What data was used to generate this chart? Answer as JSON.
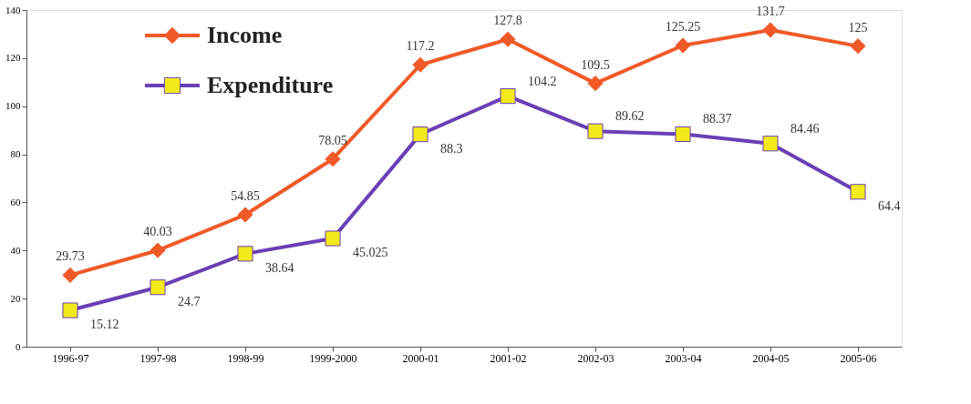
{
  "chart_data": {
    "type": "line",
    "categories": [
      "1996-97",
      "1997-98",
      "1998-99",
      "1999-2000",
      "2000-01",
      "2001-02",
      "2002-03",
      "2003-04",
      "2004-05",
      "2005-06"
    ],
    "series": [
      {
        "name": "Income",
        "color": "#f05a28",
        "marker": "diamond",
        "values": [
          29.73,
          40.03,
          54.85,
          78.05,
          117.2,
          127.8,
          109.5,
          125.25,
          131.7,
          125
        ]
      },
      {
        "name": "Expenditure",
        "color": "#6a3fb5",
        "marker": "square",
        "colors": [
          "#f2ea1a",
          "#f2ea1a",
          "#f2ea1a",
          "#f2ea1a",
          "#f2ea1a",
          "#f2ea1a",
          "#f2ea1a",
          "#f2ea1a",
          "#f2ea1a",
          "#f2ea1a"
        ],
        "values": [
          15.12,
          24.7,
          38.64,
          45.025,
          88.3,
          104.2,
          89.62,
          88.37,
          84.46,
          64.4
        ]
      }
    ],
    "ylim": [
      0,
      140
    ],
    "yticks": [
      0,
      20,
      40,
      60,
      80,
      100,
      120,
      140
    ],
    "grid": false,
    "legend": "top left",
    "data_labels": true
  }
}
